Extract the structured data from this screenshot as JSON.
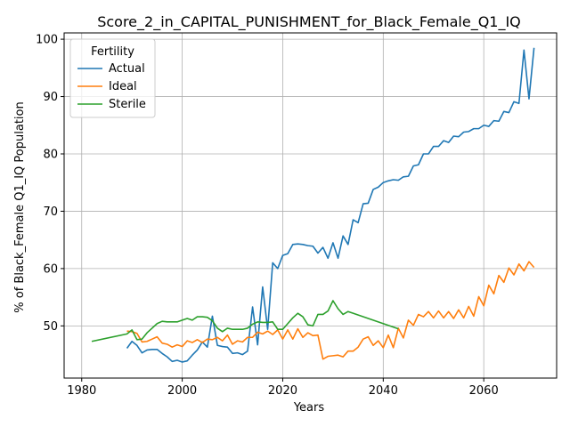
{
  "chart_data": {
    "type": "line",
    "title": "Score_2_in_CAPITAL_PUNISHMENT_for_Black_Female_Q1_IQ",
    "xlabel": "Years",
    "ylabel": "% of Black_Female Q1_IQ Population",
    "xlim": [
      1976.5,
      2074.5
    ],
    "ylim": [
      40.9,
      101.1
    ],
    "xticks": [
      1980,
      2000,
      2020,
      2040,
      2060
    ],
    "yticks": [
      50,
      60,
      70,
      80,
      90,
      100
    ],
    "grid": true,
    "legend": {
      "title": "Fertility",
      "placement": "top-left"
    },
    "series": [
      {
        "name": "Actual",
        "color": "#1f77b4",
        "x": [
          1989,
          1990,
          1991,
          1992,
          1993,
          1994,
          1995,
          1996,
          1997,
          1998,
          1999,
          2000,
          2001,
          2002,
          2003,
          2004,
          2005,
          2006,
          2007,
          2008,
          2009,
          2010,
          2011,
          2012,
          2013,
          2014,
          2015,
          2016,
          2017,
          2018,
          2019,
          2020,
          2021,
          2022,
          2023,
          2024,
          2025,
          2026,
          2027,
          2028,
          2029,
          2030,
          2031,
          2032,
          2033,
          2034,
          2035,
          2036,
          2037,
          2038,
          2039,
          2040,
          2041,
          2042,
          2043,
          2044,
          2045,
          2046,
          2047,
          2048,
          2049,
          2050,
          2051,
          2052,
          2053,
          2054,
          2055,
          2056,
          2057,
          2058,
          2059,
          2060,
          2061,
          2062,
          2063,
          2064,
          2065,
          2066,
          2067,
          2068,
          2069,
          2070
        ],
        "values": [
          46.1,
          47.3,
          46.6,
          45.3,
          45.8,
          45.9,
          45.9,
          45.2,
          44.6,
          43.8,
          44.0,
          43.7,
          43.9,
          44.9,
          45.8,
          47.2,
          46.3,
          51.7,
          46.6,
          46.4,
          46.3,
          45.2,
          45.3,
          45.0,
          45.6,
          53.3,
          46.7,
          56.8,
          49.4,
          61.0,
          60.0,
          62.3,
          62.6,
          64.2,
          64.3,
          64.2,
          64.0,
          63.9,
          62.7,
          63.7,
          61.8,
          64.5,
          61.8,
          65.7,
          64.2,
          68.5,
          68.0,
          71.3,
          71.4,
          73.8,
          74.2,
          75.0,
          75.3,
          75.5,
          75.4,
          76.0,
          76.1,
          77.9,
          78.1,
          80.0,
          80.0,
          81.3,
          81.3,
          82.3,
          82.0,
          83.1,
          83.0,
          83.8,
          83.9,
          84.4,
          84.4,
          85.0,
          84.8,
          85.8,
          85.7,
          87.4,
          87.2,
          89.1,
          88.8,
          98.1,
          89.6,
          98.5
        ]
      },
      {
        "name": "Ideal",
        "color": "#ff7f0e",
        "x": [
          1989,
          1990,
          1991,
          1992,
          1993,
          1994,
          1995,
          1996,
          1997,
          1998,
          1999,
          2000,
          2001,
          2002,
          2003,
          2004,
          2005,
          2006,
          2007,
          2008,
          2009,
          2010,
          2011,
          2012,
          2013,
          2014,
          2015,
          2016,
          2017,
          2018,
          2019,
          2020,
          2021,
          2022,
          2023,
          2024,
          2025,
          2026,
          2027,
          2028,
          2029,
          2030,
          2031,
          2032,
          2033,
          2034,
          2035,
          2036,
          2037,
          2038,
          2039,
          2040,
          2041,
          2042,
          2043,
          2044,
          2045,
          2046,
          2047,
          2048,
          2049,
          2050,
          2051,
          2052,
          2053,
          2054,
          2055,
          2056,
          2057,
          2058,
          2059,
          2060,
          2061,
          2062,
          2063,
          2064,
          2065,
          2066,
          2067,
          2068,
          2069,
          2070
        ],
        "values": [
          49.1,
          49.0,
          48.7,
          47.2,
          47.3,
          47.7,
          48.1,
          47.0,
          46.8,
          46.3,
          46.7,
          46.4,
          47.4,
          47.1,
          47.6,
          47.1,
          47.7,
          47.6,
          48.0,
          47.4,
          48.4,
          46.8,
          47.4,
          47.2,
          48.0,
          48.0,
          48.9,
          48.6,
          49.1,
          48.5,
          49.3,
          47.7,
          49.3,
          47.7,
          49.5,
          48.0,
          48.8,
          48.3,
          48.4,
          44.2,
          44.7,
          44.8,
          44.9,
          44.6,
          45.6,
          45.6,
          46.3,
          47.7,
          48.1,
          46.6,
          47.4,
          46.2,
          48.4,
          46.2,
          49.6,
          47.9,
          51.0,
          50.1,
          52.0,
          51.6,
          52.5,
          51.4,
          52.6,
          51.4,
          52.5,
          51.3,
          52.8,
          51.4,
          53.4,
          51.7,
          55.1,
          53.5,
          57.1,
          55.6,
          58.8,
          57.6,
          60.1,
          58.9,
          60.8,
          59.6,
          61.2,
          60.2
        ]
      },
      {
        "name": "Sterile",
        "color": "#2ca02c",
        "x": [
          1982,
          1989,
          1990,
          1991,
          1992,
          1993,
          1994,
          1995,
          1996,
          1997,
          1998,
          1999,
          2000,
          2001,
          2002,
          2003,
          2004,
          2005,
          2006,
          2007,
          2008,
          2009,
          2010,
          2011,
          2012,
          2013,
          2014,
          2015,
          2016,
          2017,
          2018,
          2019,
          2020,
          2021,
          2022,
          2023,
          2024,
          2025,
          2026,
          2027,
          2028,
          2029,
          2030,
          2031,
          2032,
          2033,
          2034,
          2043
        ],
        "values": [
          47.3,
          48.6,
          49.3,
          47.6,
          47.7,
          48.8,
          49.6,
          50.4,
          50.8,
          50.7,
          50.7,
          50.7,
          51.0,
          51.3,
          51.0,
          51.6,
          51.6,
          51.5,
          50.9,
          49.6,
          49.0,
          49.6,
          49.4,
          49.4,
          49.4,
          49.6,
          50.3,
          50.7,
          50.6,
          50.6,
          50.7,
          49.4,
          49.4,
          50.4,
          51.4,
          52.2,
          51.6,
          50.2,
          50.0,
          52.0,
          52.0,
          52.6,
          54.4,
          53.0,
          52.0,
          52.5,
          52.2,
          49.5
        ]
      }
    ]
  }
}
